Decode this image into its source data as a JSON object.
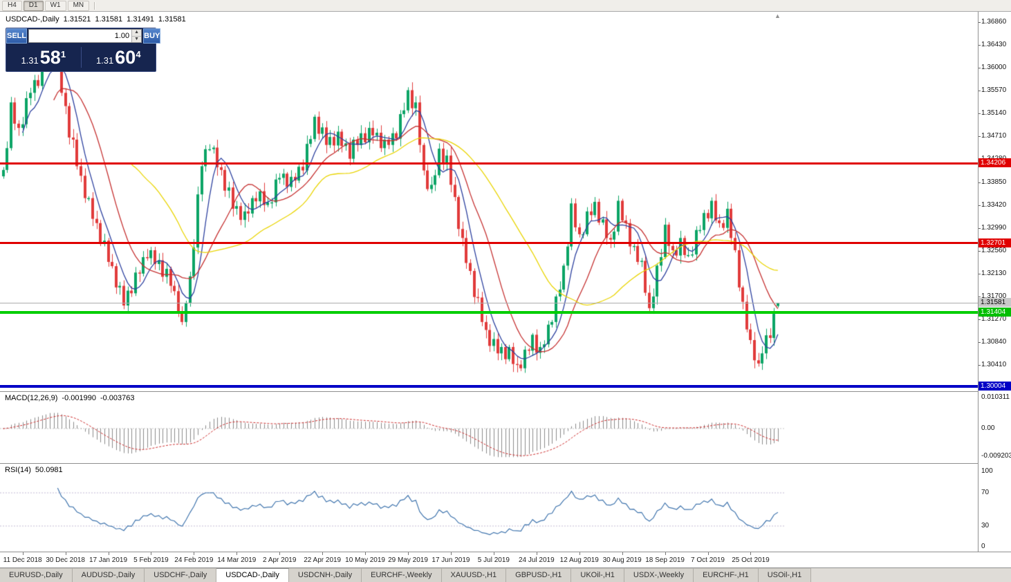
{
  "window": {
    "app_area": "chart-window",
    "symbol_title": "USDCAD-,Daily"
  },
  "toolbar": {
    "timeframes": [
      {
        "label": "H4",
        "active": false
      },
      {
        "label": "D1",
        "active": true
      },
      {
        "label": "W1",
        "active": false
      },
      {
        "label": "MN",
        "active": false
      }
    ]
  },
  "chart_header": {
    "symbol": "USDCAD-,Daily",
    "open": "1.31521",
    "high": "1.31581",
    "low": "1.31491",
    "close": "1.31581"
  },
  "trade_panel": {
    "sell_label": "SELL",
    "buy_label": "BUY",
    "volume": "1.00",
    "sell_price": {
      "prefix": "1.31",
      "big": "58",
      "sup": "1"
    },
    "buy_price": {
      "prefix": "1.31",
      "big": "60",
      "sup": "4"
    }
  },
  "price_axis": {
    "labels": [
      "1.36860",
      "1.36430",
      "1.36000",
      "1.35570",
      "1.35140",
      "1.34710",
      "1.34280",
      "1.33850",
      "1.33420",
      "1.32990",
      "1.32560",
      "1.32130",
      "1.31700",
      "1.31270",
      "1.30840",
      "1.30410"
    ],
    "highlights": [
      {
        "text": "1.34206",
        "bg": "#E00000",
        "fg": "#FFFFFF"
      },
      {
        "text": "1.32701",
        "bg": "#E00000",
        "fg": "#FFFFFF"
      },
      {
        "text": "1.31581",
        "bg": "#C9C9C9",
        "fg": "#000000"
      },
      {
        "text": "1.31404",
        "bg": "#00BE00",
        "fg": "#FFFFFF"
      },
      {
        "text": "1.30004",
        "bg": "#0000C6",
        "fg": "#FFFFFF"
      }
    ]
  },
  "macd_panel": {
    "title": "MACD(12,26,9)",
    "main": "-0.001990",
    "signal": "-0.003763",
    "axis": [
      "0.010311",
      "0.00",
      "-0.009203"
    ]
  },
  "rsi_panel": {
    "title": "RSI(14)",
    "value": "50.0981",
    "axis": [
      "100",
      "70",
      "30",
      "0"
    ],
    "levels": [
      70,
      30
    ]
  },
  "time_axis": {
    "dates": [
      "11 Dec 2018",
      "30 Dec 2018",
      "17 Jan 2019",
      "5 Feb 2019",
      "24 Feb 2019",
      "14 Mar 2019",
      "2 Apr 2019",
      "22 Apr 2019",
      "10 May 2019",
      "29 May 2019",
      "17 Jun 2019",
      "5 Jul 2019",
      "24 Jul 2019",
      "12 Aug 2019",
      "30 Aug 2019",
      "18 Sep 2019",
      "7 Oct 2019",
      "25 Oct 2019"
    ]
  },
  "tabs": [
    {
      "label": "EURUSD-,Daily",
      "active": false
    },
    {
      "label": "AUDUSD-,Daily",
      "active": false
    },
    {
      "label": "USDCHF-,Daily",
      "active": false
    },
    {
      "label": "USDCAD-,Daily",
      "active": true
    },
    {
      "label": "USDCNH-,Daily",
      "active": false
    },
    {
      "label": "EURCHF-,Weekly",
      "active": false
    },
    {
      "label": "XAUUSD-,H1",
      "active": false
    },
    {
      "label": "GBPUSD-,H1",
      "active": false
    },
    {
      "label": "UKOil-,H1",
      "active": false
    },
    {
      "label": "USDX-,Weekly",
      "active": false
    },
    {
      "label": "EURCHF-,H1",
      "active": false
    },
    {
      "label": "USOil-,H1",
      "active": false
    }
  ],
  "chart_data": {
    "type": "candlestick",
    "symbol": "USDCAD",
    "timeframe": "Daily",
    "visible_price_range": [
      1.2993,
      1.3706
    ],
    "current_price": 1.31581,
    "last_ohlc": [
      1.31521,
      1.31581,
      1.31491,
      1.31581
    ],
    "closes": [
      1.3408,
      1.3449,
      1.3535,
      1.3495,
      1.3487,
      1.3494,
      1.3543,
      1.3553,
      1.3577,
      1.3566,
      1.3602,
      1.3601,
      1.3637,
      1.3602,
      1.361,
      1.3553,
      1.3528,
      1.3469,
      1.3465,
      1.3415,
      1.3397,
      1.3355,
      1.3355,
      1.3316,
      1.3308,
      1.3269,
      1.3275,
      1.3235,
      1.3227,
      1.3187,
      1.319,
      1.3153,
      1.3181,
      1.3176,
      1.3215,
      1.3213,
      1.3244,
      1.3242,
      1.3257,
      1.3231,
      1.3238,
      1.3207,
      1.3222,
      1.319,
      1.318,
      1.3139,
      1.3122,
      1.3158,
      1.3208,
      1.3262,
      1.3362,
      1.3415,
      1.3447,
      1.3447,
      1.345,
      1.3413,
      1.3408,
      1.3369,
      1.3375,
      1.3335,
      1.334,
      1.3314,
      1.333,
      1.3326,
      1.3355,
      1.3349,
      1.3368,
      1.3342,
      1.3347,
      1.3347,
      1.339,
      1.3393,
      1.3401,
      1.3376,
      1.3395,
      1.3388,
      1.3414,
      1.3407,
      1.3457,
      1.3466,
      1.3508,
      1.3476,
      1.3488,
      1.3455,
      1.347,
      1.3454,
      1.348,
      1.3453,
      1.3458,
      1.3429,
      1.3465,
      1.3455,
      1.3477,
      1.346,
      1.3487,
      1.3473,
      1.3478,
      1.3449,
      1.3465,
      1.3455,
      1.3477,
      1.3467,
      1.3513,
      1.352,
      1.3558,
      1.3524,
      1.3535,
      1.3455,
      1.3407,
      1.3372,
      1.338,
      1.3398,
      1.3448,
      1.3419,
      1.3435,
      1.338,
      1.3357,
      1.3297,
      1.328,
      1.3233,
      1.3218,
      1.3169,
      1.3168,
      1.3122,
      1.3107,
      1.3077,
      1.309,
      1.3063,
      1.3075,
      1.3052,
      1.3075,
      1.3043,
      1.3042,
      1.3035,
      1.307,
      1.3068,
      1.3098,
      1.3064,
      1.3075,
      1.308,
      1.3117,
      1.3122,
      1.317,
      1.3183,
      1.3228,
      1.3264,
      1.3345,
      1.33,
      1.3287,
      1.3287,
      1.333,
      1.3323,
      1.3348,
      1.3309,
      1.3315,
      1.328,
      1.3277,
      1.3292,
      1.335,
      1.3313,
      1.3308,
      1.3264,
      1.3265,
      1.3235,
      1.3237,
      1.3177,
      1.3148,
      1.317,
      1.3228,
      1.3244,
      1.3305,
      1.3265,
      1.3257,
      1.3247,
      1.328,
      1.3248,
      1.3248,
      1.3249,
      1.3295,
      1.3295,
      1.3327,
      1.3317,
      1.335,
      1.3313,
      1.3308,
      1.3299,
      1.3335,
      1.328,
      1.3257,
      1.3187,
      1.316,
      1.3108,
      1.3088,
      1.305,
      1.3044,
      1.3063,
      1.3097,
      1.3092,
      1.3138,
      1.31581
    ],
    "horizontal_lines": [
      {
        "price": 1.34206,
        "color": "#E00000",
        "thickness": 3
      },
      {
        "price": 1.32701,
        "color": "#E00000",
        "thickness": 3
      },
      {
        "price": 1.31404,
        "color": "#00CE00",
        "thickness": 4
      },
      {
        "price": 1.30004,
        "color": "#0000C6",
        "thickness": 4
      }
    ],
    "moving_averages": [
      {
        "period": 6,
        "color": "#2B3F9E"
      },
      {
        "period": 14,
        "color": "#C53030"
      },
      {
        "period": 34,
        "color": "#E9D400"
      }
    ],
    "indicators": {
      "macd": {
        "fast": 12,
        "slow": 26,
        "signal": 9,
        "main_value": -0.00199,
        "signal_value": -0.003763,
        "hist_color": "#8A8A8A",
        "signal_color": "#CC2A2A"
      },
      "rsi": {
        "period": 14,
        "value": 50.0981,
        "levels": [
          70,
          30
        ],
        "color": "#3F74AD"
      }
    },
    "candle_colors": {
      "up": "#0CA466",
      "down": "#E13B3B"
    },
    "first_date_label_index": 5,
    "date_label_step": 11
  }
}
